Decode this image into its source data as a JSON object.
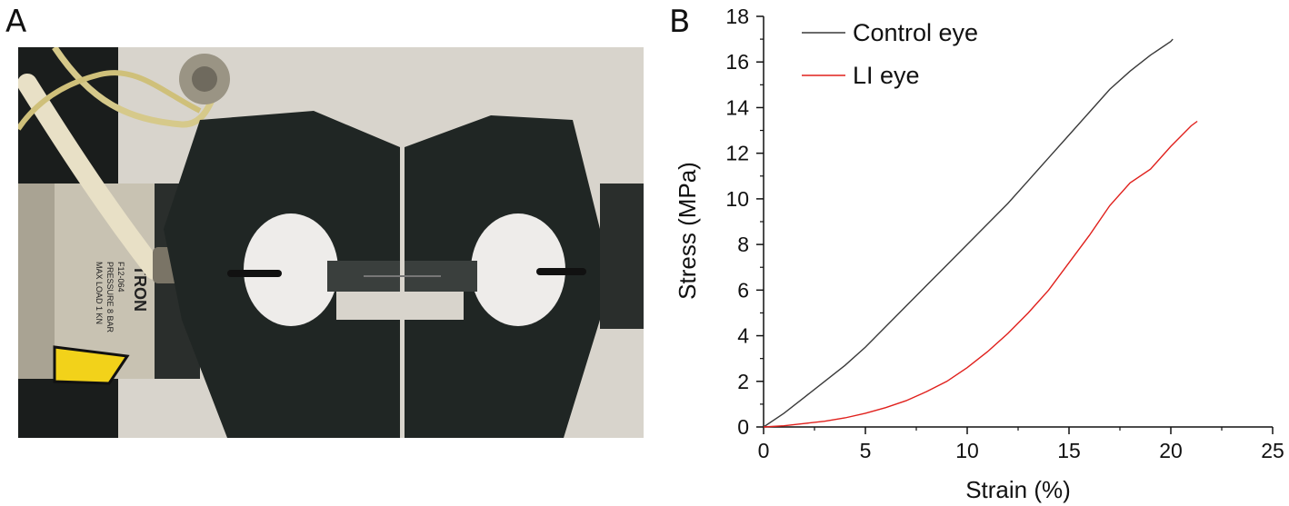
{
  "panel_labels": {
    "a": "A",
    "b": "B"
  },
  "photo": {
    "equipment_label": "TRON",
    "label_lines": [
      "F12-064",
      "PRESSURE 8 BAR",
      "MAX LOAD 1 KN"
    ],
    "colors": {
      "background": "#d8d4cc",
      "grip_body": "#202624",
      "cylinder": "#c8c2b2",
      "tubing": "#d6c98a",
      "warning_sticker": "#f2d21a"
    }
  },
  "chart_data": {
    "type": "line",
    "xlabel": "Strain (%)",
    "ylabel": "Stress (MPa)",
    "xlim": [
      0,
      25
    ],
    "ylim": [
      0,
      18
    ],
    "xticks": [
      0,
      5,
      10,
      15,
      20,
      25
    ],
    "yticks": [
      0,
      2,
      4,
      6,
      8,
      10,
      12,
      14,
      16,
      18
    ],
    "grid": false,
    "legend_position": "top-left",
    "series": [
      {
        "name": "Control eye",
        "color": "#3a3a3a",
        "x": [
          0,
          1,
          2,
          3,
          4,
          5,
          6,
          7,
          8,
          9,
          10,
          11,
          12,
          13,
          14,
          15,
          16,
          17,
          18,
          19,
          20,
          20.1
        ],
        "y": [
          0,
          0.6,
          1.3,
          2.0,
          2.7,
          3.5,
          4.4,
          5.3,
          6.2,
          7.1,
          8.0,
          8.9,
          9.8,
          10.8,
          11.8,
          12.8,
          13.8,
          14.8,
          15.6,
          16.3,
          16.9,
          17.0
        ]
      },
      {
        "name": "LI eye",
        "color": "#e0201c",
        "x": [
          0,
          1,
          2,
          3,
          4,
          5,
          6,
          7,
          8,
          9,
          10,
          11,
          12,
          13,
          14,
          15,
          16,
          17,
          18,
          19,
          20,
          21,
          21.3
        ],
        "y": [
          0,
          0.05,
          0.15,
          0.25,
          0.4,
          0.6,
          0.85,
          1.15,
          1.55,
          2.0,
          2.6,
          3.3,
          4.1,
          5.0,
          6.0,
          7.2,
          8.4,
          9.7,
          10.7,
          11.3,
          12.3,
          13.2,
          13.4
        ]
      }
    ]
  }
}
